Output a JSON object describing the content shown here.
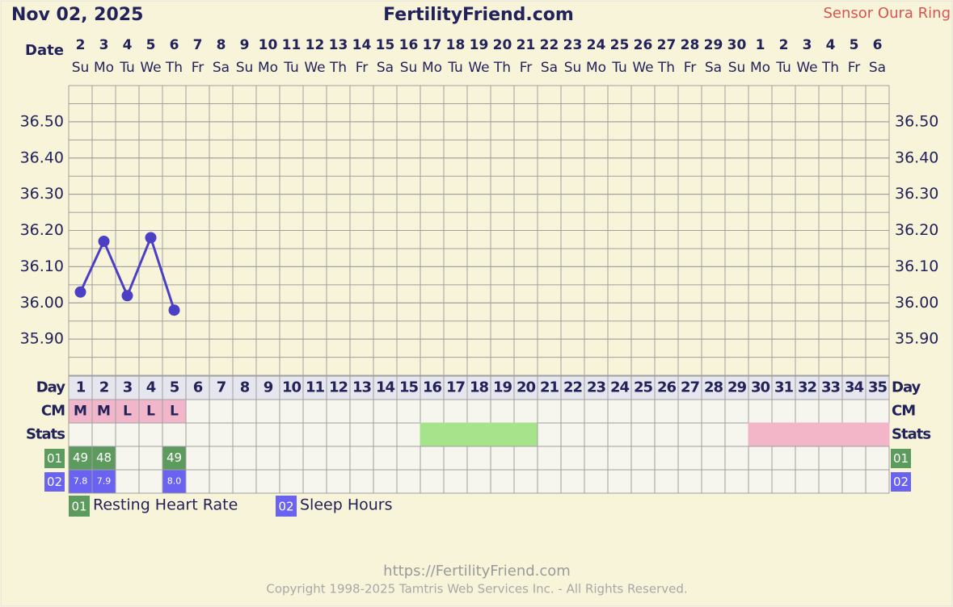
{
  "header": {
    "date": "Nov 02, 2025",
    "site": "FertilityFriend.com",
    "sensor": "Sensor Oura Ring"
  },
  "chart_data": {
    "type": "line",
    "date_label": "Date",
    "dates": [
      "2",
      "3",
      "4",
      "5",
      "6",
      "7",
      "8",
      "9",
      "10",
      "11",
      "12",
      "13",
      "14",
      "15",
      "16",
      "17",
      "18",
      "19",
      "20",
      "21",
      "22",
      "23",
      "24",
      "25",
      "26",
      "27",
      "28",
      "29",
      "30",
      "1",
      "2",
      "3",
      "4",
      "5",
      "6"
    ],
    "weekdays": [
      "Su",
      "Mo",
      "Tu",
      "We",
      "Th",
      "Fr",
      "Sa",
      "Su",
      "Mo",
      "Tu",
      "We",
      "Th",
      "Fr",
      "Sa",
      "Su",
      "Mo",
      "Tu",
      "We",
      "Th",
      "Fr",
      "Sa",
      "Su",
      "Mo",
      "Tu",
      "We",
      "Th",
      "Fr",
      "Sa",
      "Su",
      "Mo",
      "Tu",
      "We",
      "Th",
      "Fr",
      "Sa"
    ],
    "day_label": "Day",
    "categories": [
      1,
      2,
      3,
      4,
      5,
      6,
      7,
      8,
      9,
      10,
      11,
      12,
      13,
      14,
      15,
      16,
      17,
      18,
      19,
      20,
      21,
      22,
      23,
      24,
      25,
      26,
      27,
      28,
      29,
      30,
      31,
      32,
      33,
      34,
      35
    ],
    "values": [
      36.03,
      36.17,
      36.02,
      36.18,
      35.98,
      null,
      null,
      null,
      null,
      null,
      null,
      null,
      null,
      null,
      null,
      null,
      null,
      null,
      null,
      null,
      null,
      null,
      null,
      null,
      null,
      null,
      null,
      null,
      null,
      null,
      null,
      null,
      null,
      null,
      null
    ],
    "color": "#4b3fc6",
    "ylim": [
      35.8,
      36.6
    ],
    "yticks": [
      {
        "value": 35.9,
        "label": "35.90"
      },
      {
        "value": 36.0,
        "label": "36.00"
      },
      {
        "value": 36.1,
        "label": "36.10"
      },
      {
        "value": 36.2,
        "label": "36.20"
      },
      {
        "value": 36.3,
        "label": "36.30"
      },
      {
        "value": 36.4,
        "label": "36.40"
      },
      {
        "value": 36.5,
        "label": "36.50"
      }
    ],
    "grid": true,
    "cm_label": "CM",
    "cm_color": "#f2b6cb",
    "cm": [
      "M",
      "M",
      "L",
      "L",
      "L",
      null,
      null,
      null,
      null,
      null,
      null,
      null,
      null,
      null,
      null,
      null,
      null,
      null,
      null,
      null,
      null,
      null,
      null,
      null,
      null,
      null,
      null,
      null,
      null,
      null,
      null,
      null,
      null,
      null,
      null
    ],
    "stats_label": "Stats",
    "stats_colors": [
      null,
      null,
      null,
      null,
      null,
      null,
      null,
      null,
      null,
      null,
      null,
      null,
      null,
      null,
      null,
      "#a6e38a",
      "#a6e38a",
      "#a6e38a",
      "#a6e38a",
      "#a6e38a",
      null,
      null,
      null,
      null,
      null,
      null,
      null,
      null,
      null,
      "#f3b5c8",
      "#f3b5c8",
      "#f3b5c8",
      "#f3b5c8",
      "#f3b5c8",
      "#f3b5c8"
    ],
    "measurements": [
      {
        "code": "01",
        "name": "Resting Heart Rate",
        "color": "#5d9a5d",
        "values": [
          49,
          48,
          null,
          null,
          49,
          null,
          null,
          null,
          null,
          null,
          null,
          null,
          null,
          null,
          null,
          null,
          null,
          null,
          null,
          null,
          null,
          null,
          null,
          null,
          null,
          null,
          null,
          null,
          null,
          null,
          null,
          null,
          null,
          null,
          null
        ]
      },
      {
        "code": "02",
        "name": "Sleep Hours",
        "color": "#6a62f0",
        "values": [
          7.8,
          7.9,
          null,
          null,
          8.0,
          null,
          null,
          null,
          null,
          null,
          null,
          null,
          null,
          null,
          null,
          null,
          null,
          null,
          null,
          null,
          null,
          null,
          null,
          null,
          null,
          null,
          null,
          null,
          null,
          null,
          null,
          null,
          null,
          null,
          null
        ],
        "value_labels": [
          "7.8",
          "7.9",
          null,
          null,
          "8.0",
          null,
          null,
          null,
          null,
          null,
          null,
          null,
          null,
          null,
          null,
          null,
          null,
          null,
          null,
          null,
          null,
          null,
          null,
          null,
          null,
          null,
          null,
          null,
          null,
          null,
          null,
          null,
          null,
          null,
          null
        ]
      }
    ]
  },
  "footer": {
    "url": "https://FertilityFriend.com",
    "copyright": "Copyright 1998-2025 Tamtris Web Services Inc. - All Rights Reserved."
  }
}
